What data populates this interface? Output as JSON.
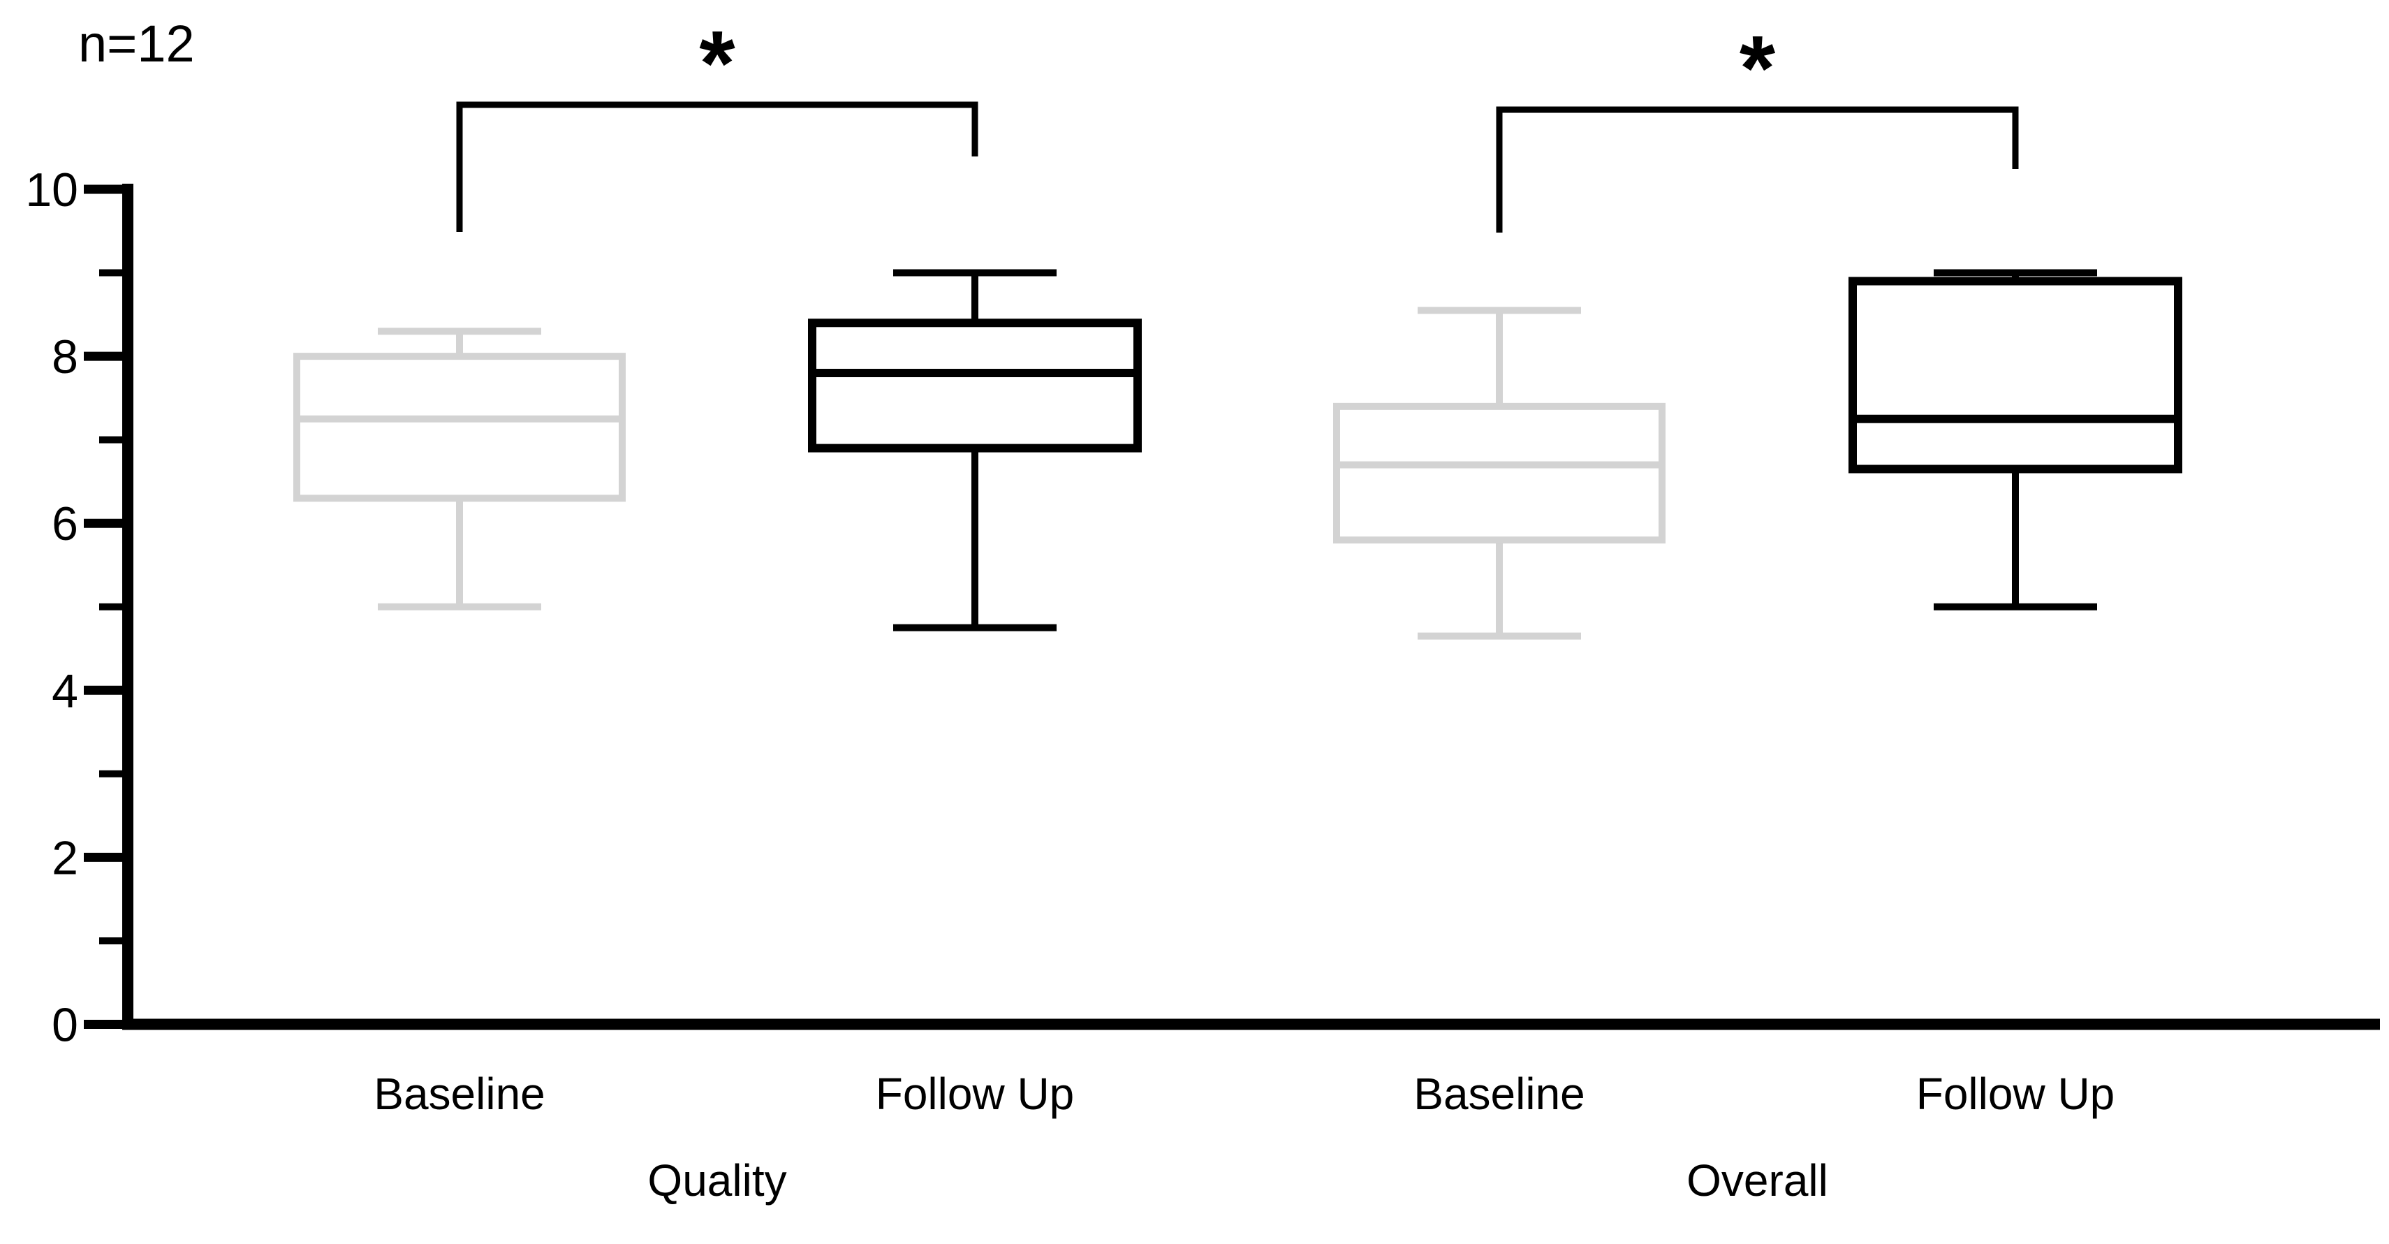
{
  "chart_data": {
    "type": "boxplot",
    "title": "",
    "sample_size": "n=12",
    "ylim": [
      0,
      10
    ],
    "yticks": [
      0,
      2,
      4,
      6,
      8,
      10
    ],
    "minor_yticks": [
      1,
      3,
      5,
      7,
      9
    ],
    "grid": false,
    "legend": "none",
    "groups": [
      "Quality",
      "Overall"
    ],
    "colors": {
      "baseline_box": "#d3d3d3",
      "followup_box": "#000000",
      "axis": "#000000",
      "background": "#ffffff"
    },
    "series": [
      {
        "group": "Quality",
        "condition": "Baseline",
        "color": "#d3d3d3",
        "min": 5.0,
        "q1": 6.3,
        "median": 7.25,
        "q3": 8.0,
        "max": 8.3
      },
      {
        "group": "Quality",
        "condition": "Follow Up",
        "color": "#000000",
        "min": 4.75,
        "q1": 6.9,
        "median": 7.8,
        "q3": 8.4,
        "max": 9.0
      },
      {
        "group": "Overall",
        "condition": "Baseline",
        "color": "#d3d3d3",
        "min": 4.65,
        "q1": 5.8,
        "median": 6.7,
        "q3": 7.4,
        "max": 8.55
      },
      {
        "group": "Overall",
        "condition": "Follow Up",
        "color": "#000000",
        "min": 5.0,
        "q1": 6.65,
        "median": 7.25,
        "q3": 8.9,
        "max": 9.0
      }
    ],
    "significance_brackets": [
      {
        "group": "Quality",
        "from": "Baseline",
        "to": "Follow Up",
        "label": "*"
      },
      {
        "group": "Overall",
        "from": "Baseline",
        "to": "Follow Up",
        "label": "*"
      }
    ]
  }
}
